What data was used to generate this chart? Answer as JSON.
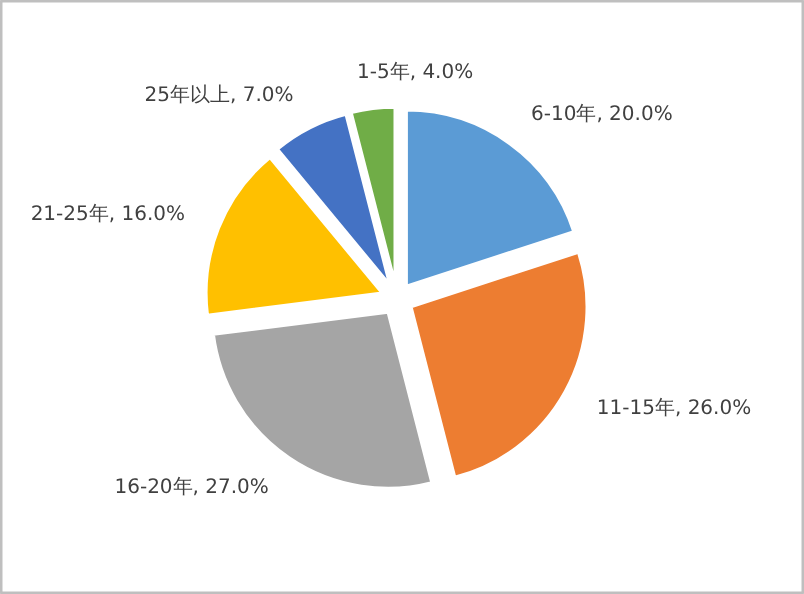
{
  "chart_data": {
    "type": "pie",
    "categories": [
      "6-10年",
      "11-15年",
      "16-20年",
      "21-25年",
      "25年以上",
      "1-5年"
    ],
    "values": [
      20.0,
      26.0,
      27.0,
      16.0,
      7.0,
      4.0
    ],
    "colors": [
      "#5b9bd5",
      "#ed7d31",
      "#a5a5a5",
      "#ffc000",
      "#4472c4",
      "#70ad47"
    ],
    "value_labels": [
      "20.0%",
      "26.0%",
      "27.0%",
      "16.0%",
      "7.0%",
      "4.0%"
    ]
  }
}
